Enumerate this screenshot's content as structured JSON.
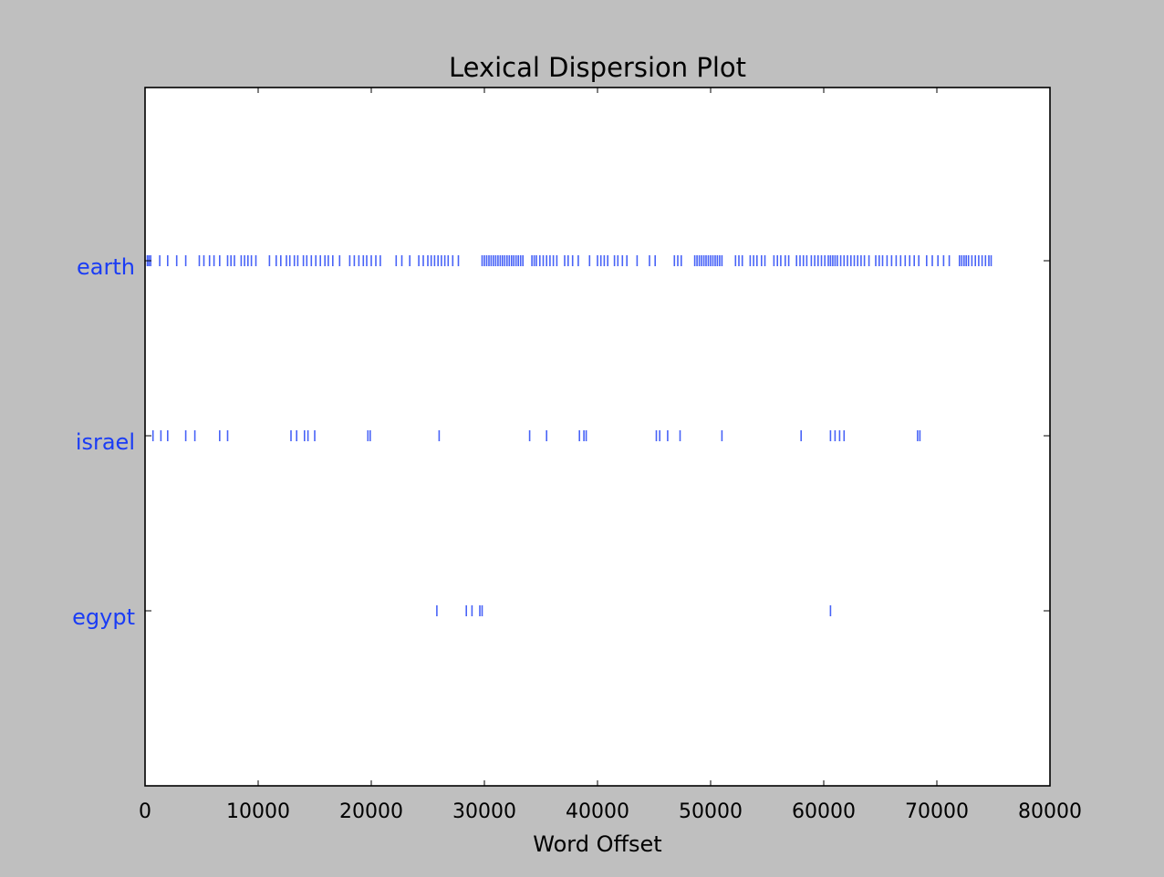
{
  "chart_data": {
    "type": "scatter",
    "title": "Lexical Dispersion Plot",
    "xlabel": "Word Offset",
    "ylabel": "",
    "xlim": [
      0,
      80000
    ],
    "grid": false,
    "xticks": [
      "0",
      "10000",
      "20000",
      "30000",
      "40000",
      "50000",
      "60000",
      "70000",
      "80000"
    ],
    "xtick_values": [
      0,
      10000,
      20000,
      30000,
      40000,
      50000,
      60000,
      70000,
      80000
    ],
    "categories": [
      "earth",
      "israel",
      "egypt"
    ],
    "marker": "|",
    "colors": {
      "marker": "#1a3cf5",
      "label": "#1a3cf5",
      "axes": "#000000",
      "figure_bg": "#bfbfbf",
      "plot_bg": "#ffffff"
    },
    "series": [
      {
        "word": "earth",
        "offsets": [
          200,
          350,
          500,
          1300,
          2000,
          2800,
          3600,
          4800,
          5200,
          5700,
          6100,
          6600,
          7300,
          7600,
          7900,
          8500,
          8800,
          9100,
          9400,
          9800,
          11000,
          11600,
          12000,
          12500,
          12800,
          13200,
          13500,
          14000,
          14300,
          14700,
          15100,
          15500,
          15900,
          16200,
          16600,
          17200,
          18100,
          18500,
          18900,
          19300,
          19600,
          20000,
          20400,
          20800,
          22200,
          22700,
          23400,
          24200,
          24600,
          25000,
          25300,
          25600,
          25900,
          26200,
          26500,
          26800,
          27200,
          27700,
          29800,
          30000,
          30200,
          30400,
          30600,
          30800,
          31000,
          31200,
          31400,
          31600,
          31800,
          32000,
          32200,
          32400,
          32600,
          32800,
          33000,
          33200,
          33400,
          34200,
          34400,
          34600,
          34900,
          35200,
          35500,
          35800,
          36100,
          36400,
          37100,
          37400,
          37800,
          38300,
          39300,
          40000,
          40300,
          40600,
          40900,
          41500,
          41800,
          42200,
          42600,
          43500,
          44600,
          45100,
          46800,
          47100,
          47400,
          48600,
          48800,
          49000,
          49200,
          49400,
          49600,
          49800,
          50000,
          50200,
          50400,
          50600,
          50800,
          51000,
          52200,
          52500,
          52800,
          53500,
          53800,
          54100,
          54500,
          54800,
          55600,
          55900,
          56200,
          56600,
          56900,
          57600,
          57900,
          58200,
          58500,
          58900,
          59200,
          59500,
          59800,
          60100,
          60400,
          60600,
          60800,
          61000,
          61200,
          61500,
          61800,
          62100,
          62400,
          62700,
          63000,
          63300,
          63600,
          64000,
          64600,
          64900,
          65200,
          65600,
          66000,
          66400,
          66800,
          67200,
          67600,
          68000,
          68400,
          69100,
          69600,
          70100,
          70600,
          71100,
          72000,
          72200,
          72400,
          72600,
          72800,
          73100,
          73400,
          73700,
          74000,
          74300,
          74600,
          74800
        ]
      },
      {
        "word": "israel",
        "offsets": [
          700,
          1400,
          2000,
          3600,
          4400,
          6600,
          7300,
          12900,
          13400,
          14100,
          14400,
          15000,
          19700,
          19900,
          26000,
          34000,
          35500,
          38400,
          38800,
          39000,
          45200,
          45500,
          46200,
          47300,
          51000,
          58000,
          60600,
          61000,
          61400,
          61800,
          68300,
          68500
        ]
      },
      {
        "word": "egypt",
        "offsets": [
          25800,
          28400,
          28900,
          29600,
          29800,
          60600
        ]
      }
    ]
  }
}
